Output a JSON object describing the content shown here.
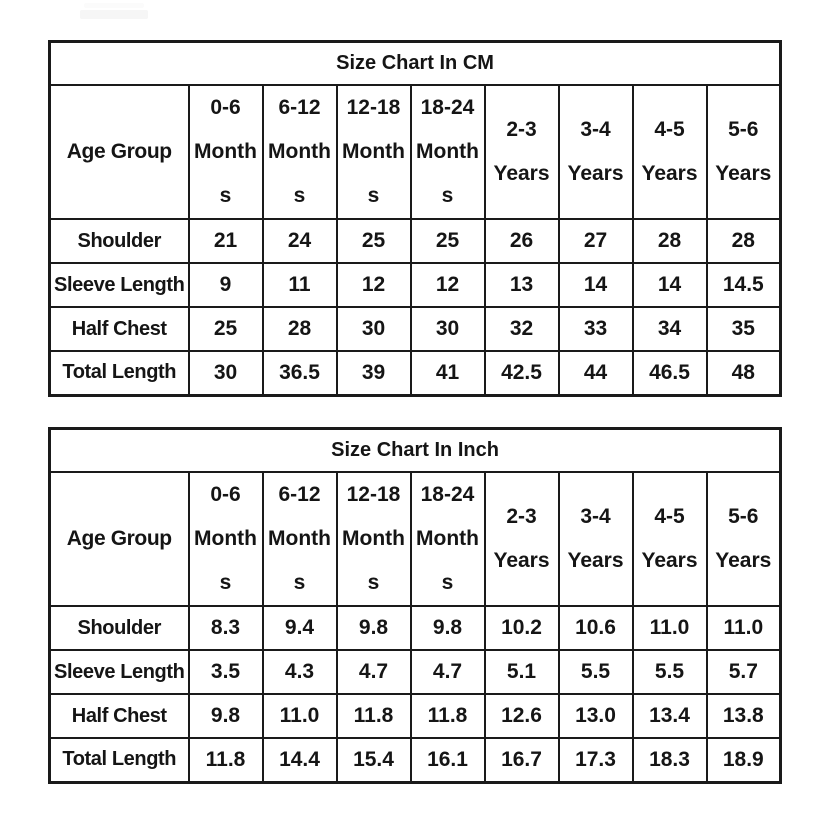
{
  "page": {
    "background_color": "#ffffff",
    "border_color": "#1a1a1a",
    "text_color": "#151515"
  },
  "watermark": {
    "color": "#f6f6f6"
  },
  "tables": [
    {
      "id": "cm",
      "title": "Size Chart In CM",
      "row_header_label": "Age Group",
      "column_headers": [
        [
          "0-6",
          "Month",
          "s"
        ],
        [
          "6-12",
          "Month",
          "s"
        ],
        [
          "12-18",
          "Month",
          "s"
        ],
        [
          "18-24",
          "Month",
          "s"
        ],
        [
          "2-3",
          "Years"
        ],
        [
          "3-4",
          "Years"
        ],
        [
          "4-5",
          "Years"
        ],
        [
          "5-6",
          "Years"
        ]
      ],
      "rows": [
        {
          "label": "Shoulder",
          "values": [
            "21",
            "24",
            "25",
            "25",
            "26",
            "27",
            "28",
            "28"
          ]
        },
        {
          "label": "Sleeve Length",
          "values": [
            "9",
            "11",
            "12",
            "12",
            "13",
            "14",
            "14",
            "14.5"
          ]
        },
        {
          "label": "Half Chest",
          "values": [
            "25",
            "28",
            "30",
            "30",
            "32",
            "33",
            "34",
            "35"
          ]
        },
        {
          "label": "Total Length",
          "values": [
            "30",
            "36.5",
            "39",
            "41",
            "42.5",
            "44",
            "46.5",
            "48"
          ]
        }
      ]
    },
    {
      "id": "inch",
      "title": "Size Chart In Inch",
      "row_header_label": "Age Group",
      "column_headers": [
        [
          "0-6",
          "Month",
          "s"
        ],
        [
          "6-12",
          "Month",
          "s"
        ],
        [
          "12-18",
          "Month",
          "s"
        ],
        [
          "18-24",
          "Month",
          "s"
        ],
        [
          "2-3",
          "Years"
        ],
        [
          "3-4",
          "Years"
        ],
        [
          "4-5",
          "Years"
        ],
        [
          "5-6",
          "Years"
        ]
      ],
      "rows": [
        {
          "label": "Shoulder",
          "values": [
            "8.3",
            "9.4",
            "9.8",
            "9.8",
            "10.2",
            "10.6",
            "11.0",
            "11.0"
          ]
        },
        {
          "label": "Sleeve Length",
          "values": [
            "3.5",
            "4.3",
            "4.7",
            "4.7",
            "5.1",
            "5.5",
            "5.5",
            "5.7"
          ]
        },
        {
          "label": "Half Chest",
          "values": [
            "9.8",
            "11.0",
            "11.8",
            "11.8",
            "12.6",
            "13.0",
            "13.4",
            "13.8"
          ]
        },
        {
          "label": "Total Length",
          "values": [
            "11.8",
            "14.4",
            "15.4",
            "16.1",
            "16.7",
            "17.3",
            "18.3",
            "18.9"
          ]
        }
      ]
    }
  ]
}
